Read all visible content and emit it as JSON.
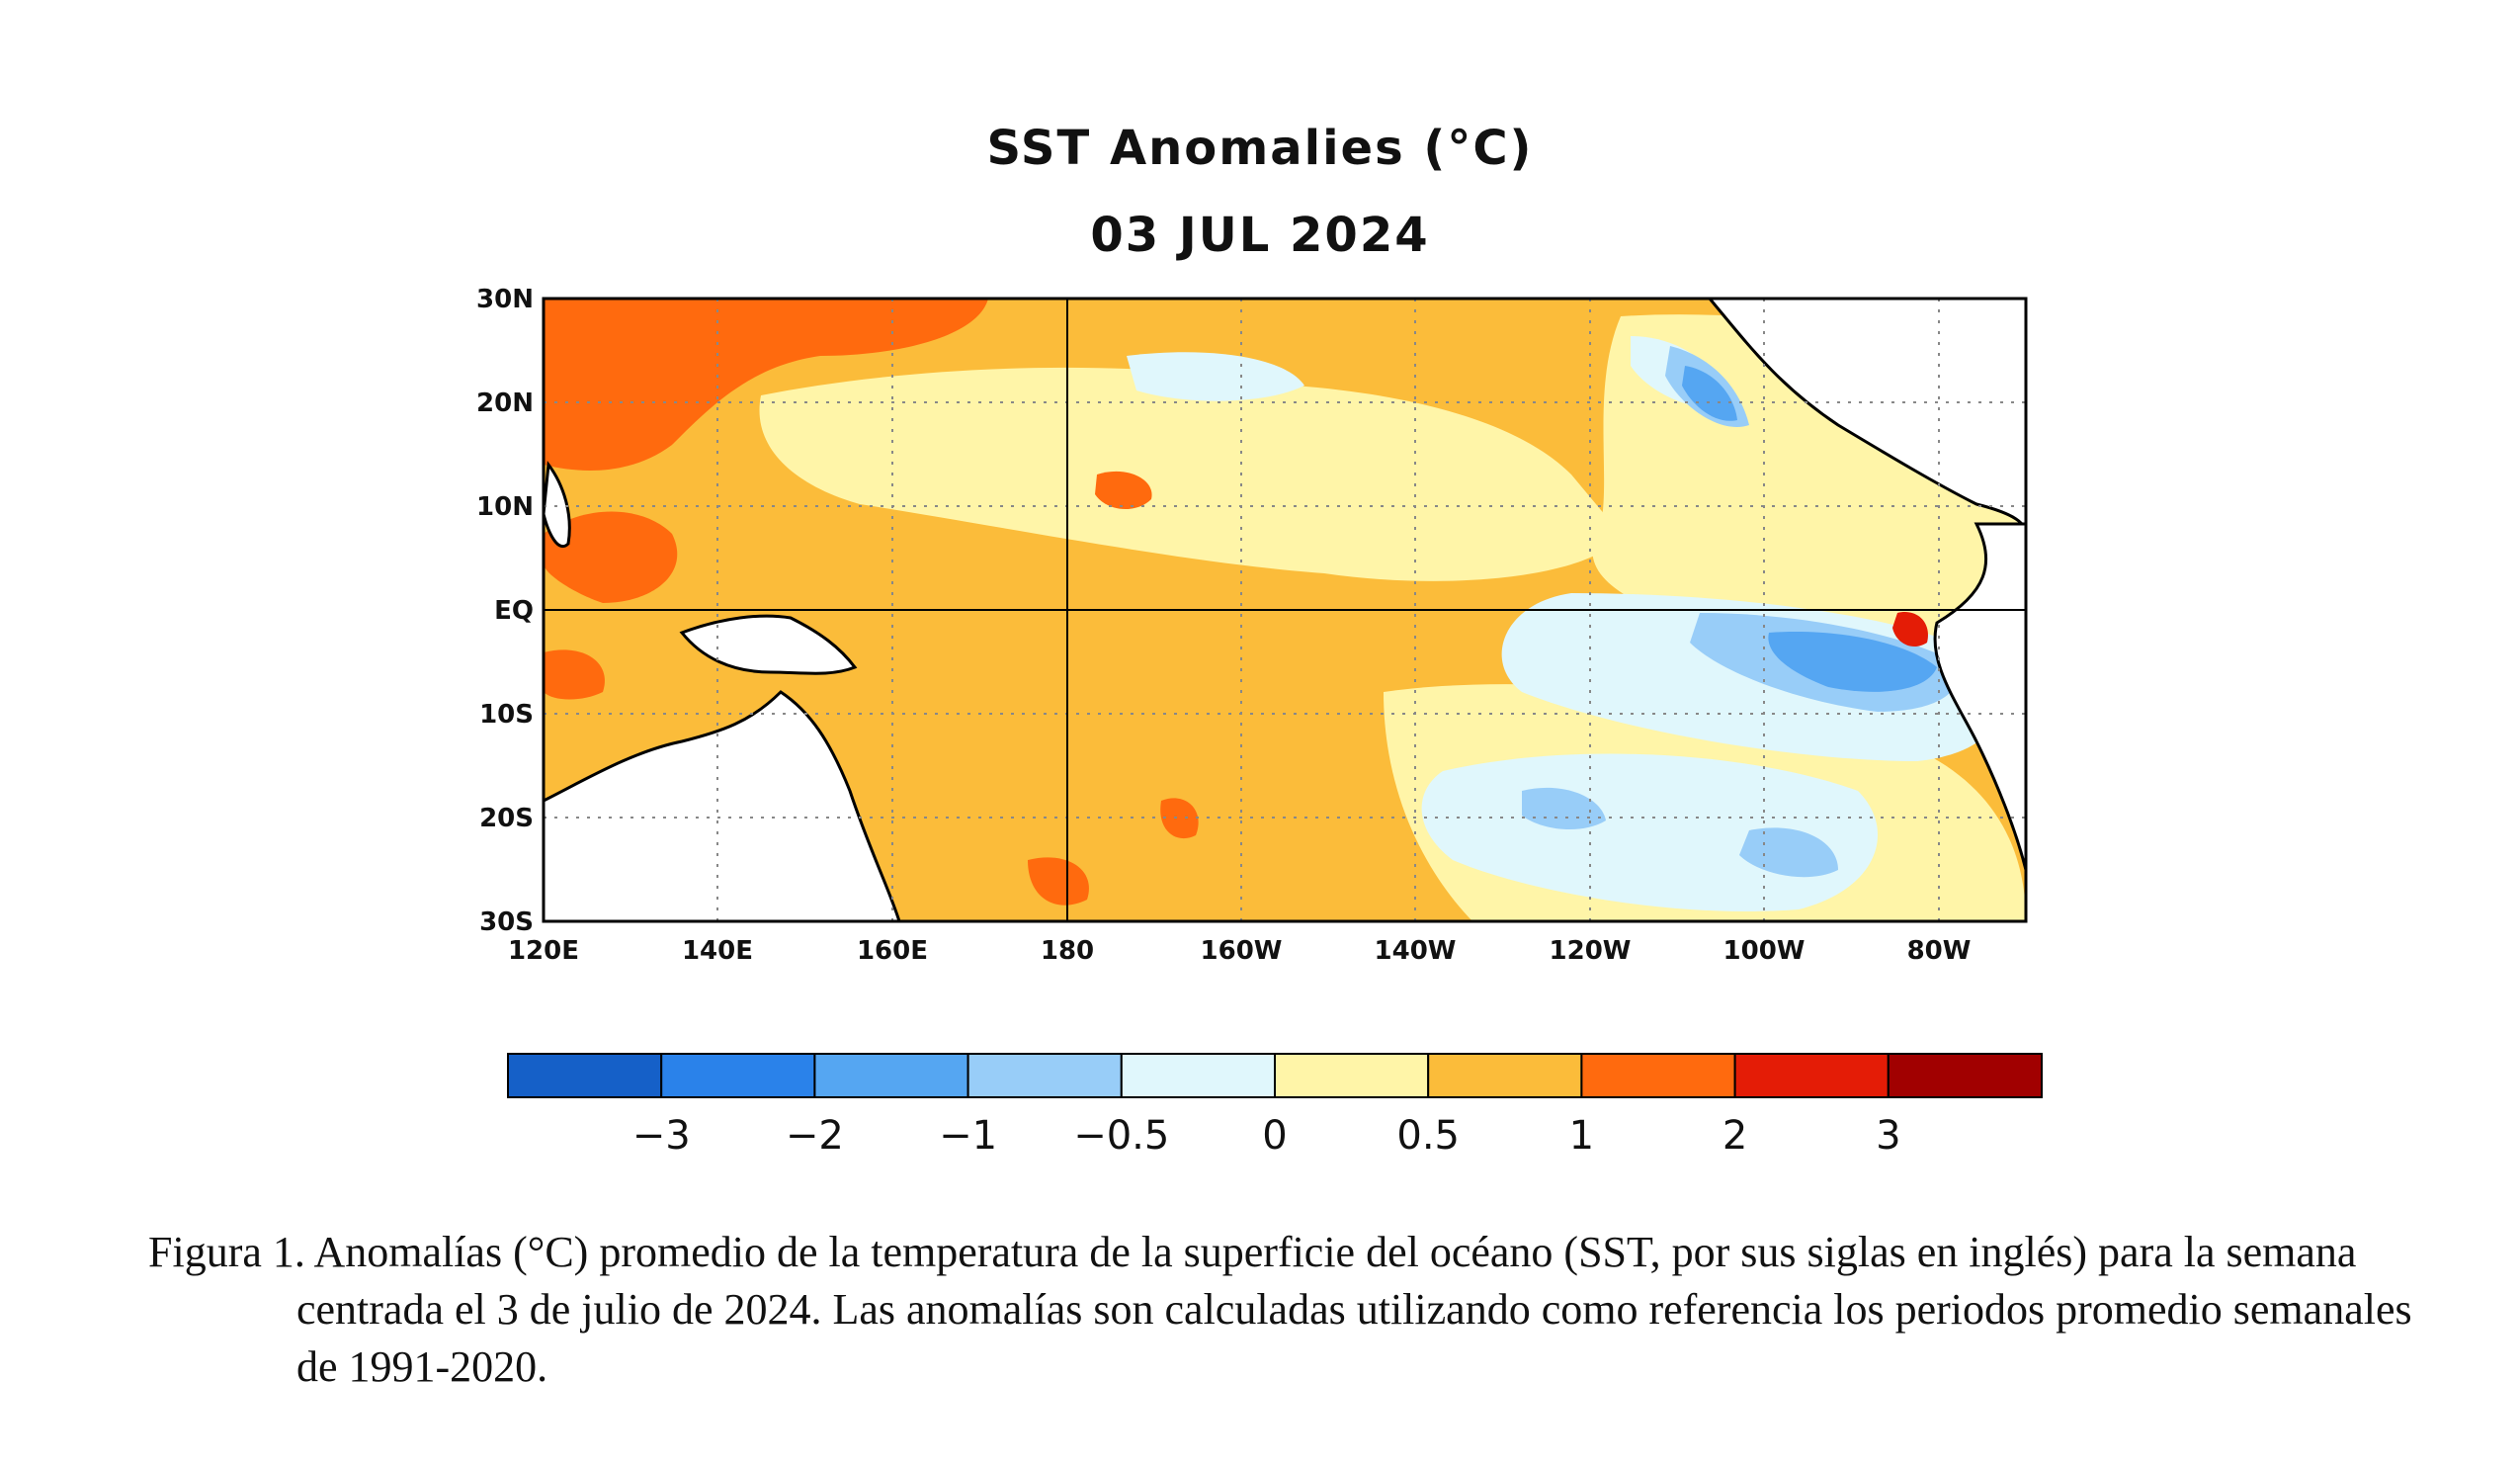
{
  "map": {
    "title": "SST Anomalies (°C)",
    "subtitle": "03 JUL 2024",
    "variable": "Sea surface temperature anomaly",
    "units": "°C",
    "lat_range": [
      -30,
      30
    ],
    "lon_range": [
      120,
      290
    ],
    "lat_ticks": [
      "30N",
      "20N",
      "10N",
      "EQ",
      "10S",
      "20S",
      "30S"
    ],
    "lon_ticks": [
      "120E",
      "140E",
      "160E",
      "180",
      "160W",
      "140W",
      "120W",
      "100W",
      "80W"
    ],
    "grid": "dotted",
    "land_color": "#ffffff"
  },
  "colorbar": {
    "labels": [
      "−3",
      "−2",
      "−1",
      "−0.5",
      "0",
      "0.5",
      "1",
      "2",
      "3"
    ],
    "colors": [
      "#1560c8",
      "#2a82ea",
      "#55a6f2",
      "#98cdf8",
      "#e0f7fc",
      "#fff5a8",
      "#fbbc3a",
      "#ff6a0e",
      "#e41c06",
      "#a10000"
    ]
  },
  "caption": {
    "text": "Figura 1. Anomalías (°C) promedio de la temperatura de la superficie del océano (SST, por sus siglas en inglés) para la semana centrada el 3 de julio de 2024. Las anomalías son calculadas utilizando como referencia los periodos promedio semanales de 1991-2020."
  }
}
